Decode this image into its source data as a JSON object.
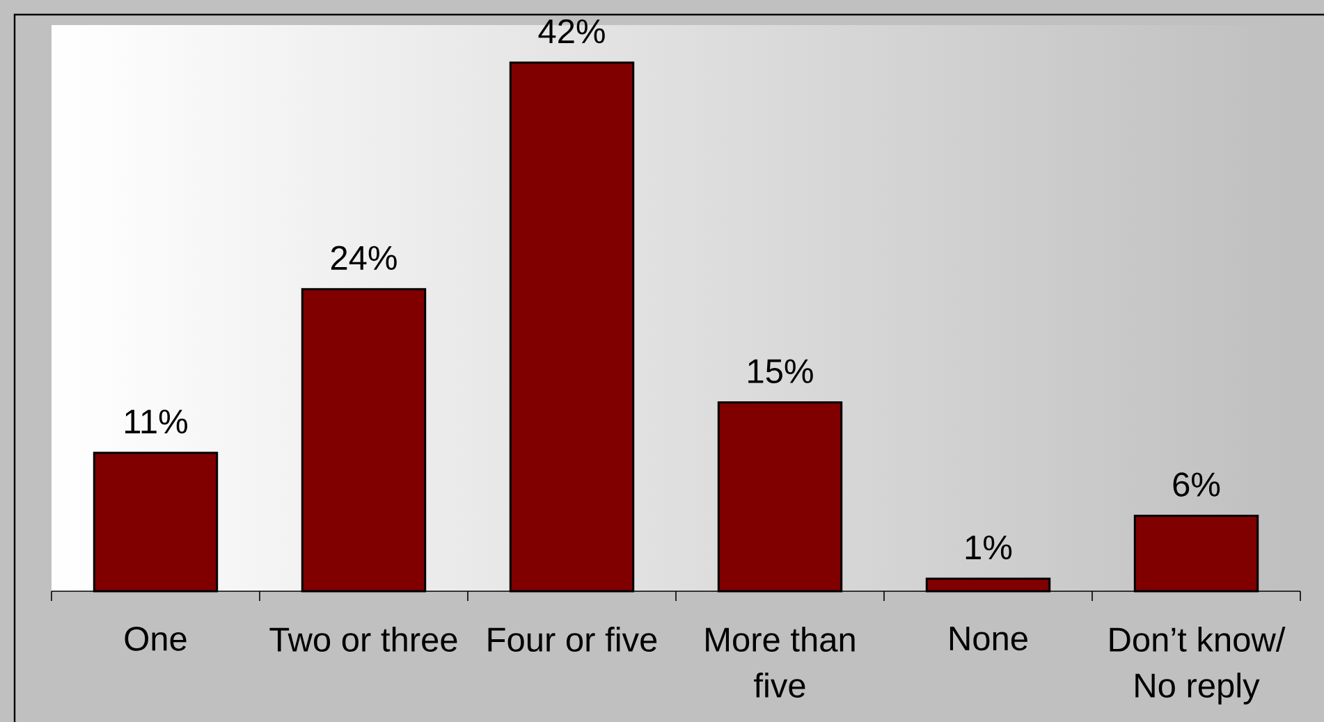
{
  "chart_data": {
    "type": "bar",
    "categories": [
      "One",
      "Two or three",
      "Four or five",
      "More than five",
      "None",
      "Don’t know/ No reply"
    ],
    "values": [
      11,
      24,
      42,
      15,
      1,
      6
    ],
    "color": "#800000",
    "value_labels": [
      "11%",
      "24%",
      "42%",
      "15%",
      "1%",
      "6%"
    ]
  }
}
